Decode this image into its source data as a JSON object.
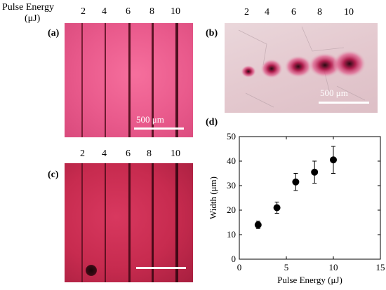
{
  "header": {
    "row_label_line1": "Pulse Energy",
    "row_label_line2": "(μJ)"
  },
  "energies": [
    "2",
    "4",
    "6",
    "8",
    "10"
  ],
  "panels": {
    "a": {
      "label": "(a)",
      "scale_text": "500 μm"
    },
    "b": {
      "label": "(b)",
      "scale_text": "500 μm"
    },
    "c": {
      "label": "(c)"
    },
    "d": {
      "label": "(d)"
    }
  },
  "colors": {
    "panel_a_bg": "#e95a8c",
    "panel_b_bg": "#e4c9cf",
    "panel_c_bg": "#c72b4f",
    "track": "#5a1424",
    "marker": "#000000"
  },
  "chart_data": {
    "type": "scatter",
    "xlabel": "Pulse Energy (μJ)",
    "ylabel": "Width (μm)",
    "xlim": [
      0,
      15
    ],
    "ylim": [
      0,
      50
    ],
    "xticks": [
      "0",
      "5",
      "10",
      "15"
    ],
    "yticks": [
      "0",
      "10",
      "20",
      "30",
      "40",
      "50"
    ],
    "error_bars": true,
    "series": [
      {
        "x": [
          2,
          4,
          6,
          8,
          10
        ],
        "y": [
          14,
          21,
          31.5,
          35.5,
          40.5
        ],
        "yerr": [
          1.5,
          2.3,
          3.5,
          4.5,
          5.5
        ]
      }
    ]
  }
}
